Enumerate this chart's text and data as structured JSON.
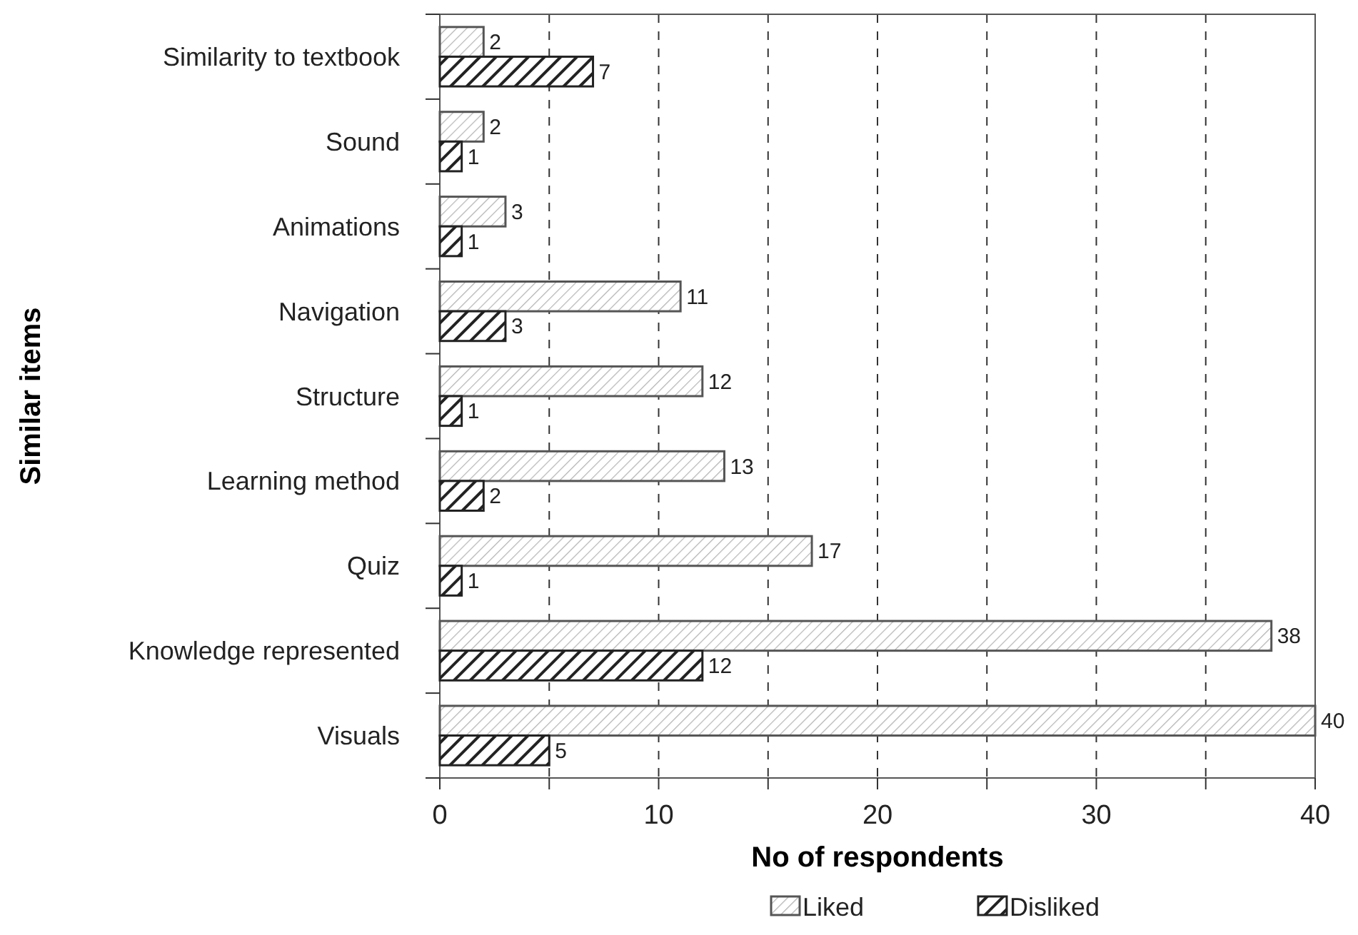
{
  "chart_data": {
    "type": "bar",
    "orientation": "horizontal",
    "xlabel": "No of respondents",
    "ylabel": "Similar items",
    "categories": [
      "Similarity to textbook",
      "Sound",
      "Animations",
      "Navigation",
      "Structure",
      "Learning method",
      "Quiz",
      "Knowledge represented",
      "Visuals"
    ],
    "series": [
      {
        "name": "Liked",
        "color": "#555555",
        "values": [
          2,
          2,
          3,
          11,
          12,
          13,
          17,
          38,
          40
        ]
      },
      {
        "name": "Disliked",
        "color": "#222222",
        "values": [
          7,
          1,
          1,
          3,
          1,
          2,
          1,
          12,
          5
        ]
      }
    ],
    "xlim": [
      0,
      40
    ],
    "xticks": [
      0,
      {
        "value": 5,
        "label": null
      },
      10,
      {
        "value": 15,
        "label": null
      },
      20,
      {
        "value": 25,
        "label": null
      },
      30,
      {
        "value": 35,
        "label": null
      },
      40
    ],
    "grid": "x",
    "data_labels": true,
    "legend": "bottom"
  }
}
